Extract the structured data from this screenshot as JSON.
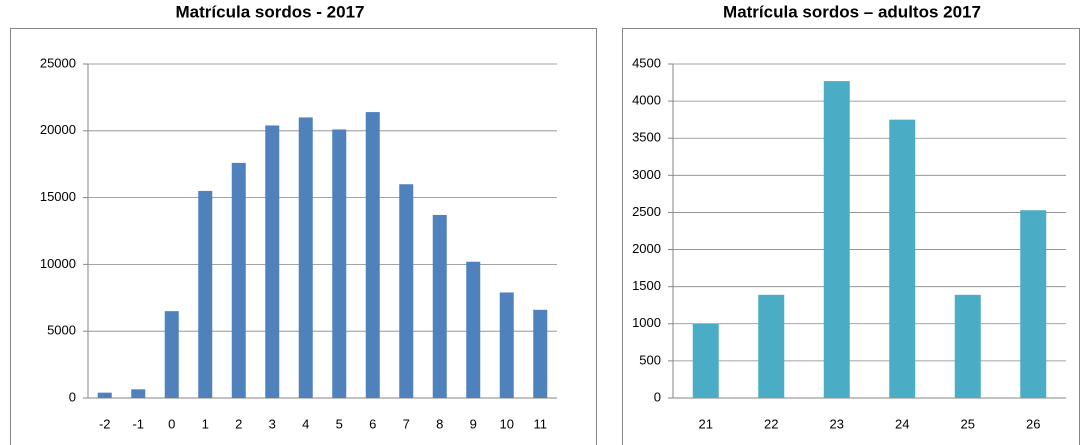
{
  "chart_data": [
    {
      "type": "bar",
      "title": "Matrícula sordos - 2017",
      "categories": [
        "-2",
        "-1",
        "0",
        "1",
        "2",
        "3",
        "4",
        "5",
        "6",
        "7",
        "8",
        "9",
        "10",
        "11"
      ],
      "values": [
        400,
        650,
        6500,
        15500,
        17600,
        20400,
        21000,
        20100,
        21400,
        16000,
        13700,
        10200,
        7900,
        6600
      ],
      "color": "#4f81bd",
      "ylim": [
        0,
        25000
      ],
      "yticks": [
        0,
        5000,
        10000,
        15000,
        20000,
        25000
      ],
      "grid": true
    },
    {
      "type": "bar",
      "title": "Matrícula sordos – adultos 2017",
      "categories": [
        "21",
        "22",
        "23",
        "24",
        "25",
        "26"
      ],
      "values": [
        1000,
        1390,
        4270,
        3750,
        1390,
        2530
      ],
      "color": "#4bacc6",
      "ylim": [
        0,
        4500
      ],
      "yticks": [
        0,
        500,
        1000,
        1500,
        2000,
        2500,
        3000,
        3500,
        4000,
        4500
      ],
      "grid": true
    }
  ]
}
